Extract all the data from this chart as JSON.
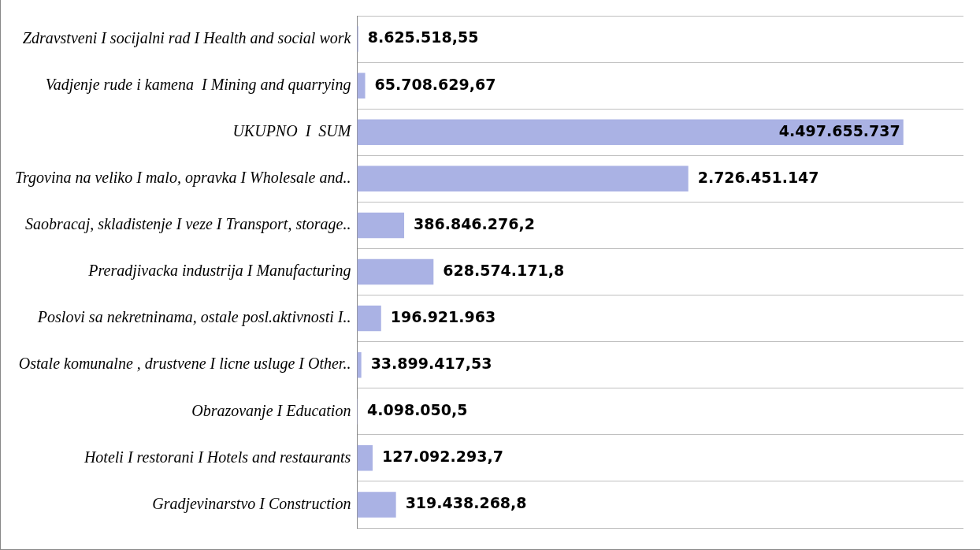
{
  "chart_data": {
    "type": "bar",
    "orientation": "horizontal",
    "categories": [
      "Zdravstveni I socijalni rad I Health and social work",
      "Vadjenje rude i kamena  I Mining and quarrying",
      "UKUPNO  I  SUM",
      "Trgovina na veliko I malo, opravka I Wholesale and..",
      "Saobracaj, skladistenje I veze I Transport, storage..",
      "Preradjivacka industrija I Manufacturing",
      "Poslovi sa nekretninama, ostale posl.aktivnosti I..",
      "Ostale komunalne , drustvene I licne usluge I Other..",
      "Obrazovanje I Education",
      "Hoteli I restorani I Hotels and restaurants",
      "Gradjevinarstvo I Construction"
    ],
    "values": [
      8625518.55,
      65708629.67,
      4497655737,
      2726451147,
      386846276.2,
      628574171.8,
      196921963,
      33899417.53,
      4098050.5,
      127092293.7,
      319438268.8
    ],
    "value_labels": [
      "8.625.518,55",
      "65.708.629,67",
      "4.497.655.737",
      "2.726.451.147",
      "386.846.276,2",
      "628.574.171,8",
      "196.921.963",
      "33.899.417,53",
      "4.098.050,5",
      "127.092.293,7",
      "319.438.268,8"
    ],
    "color": "#aab2e4",
    "grid": "y",
    "legend": false,
    "tick_labels": "y"
  }
}
